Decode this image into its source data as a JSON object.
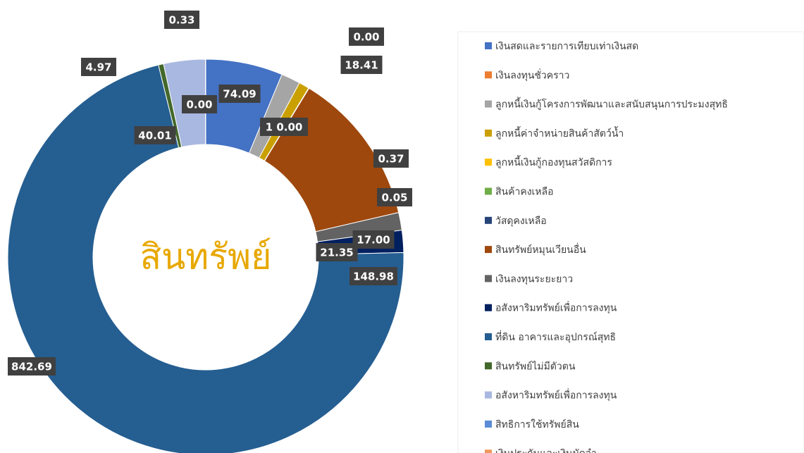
{
  "chart_data": {
    "type": "donut",
    "title": "สินทรัพย์",
    "categories": [
      "เงินสดและรายการเทียบเท่าเงินสด",
      "เงินลงทุนชั่วคราว",
      "ลูกหนี้เงินกู้โครงการพัฒนาและสนับสนุนการประมงสุทธิ",
      "ลูกหนี้ค่าจำหน่ายสินค้าสัตว์น้ำ",
      "ลูกหนี้เงินกู้กองทุนสวัสดิการ",
      "สินค้าคงเหลือ",
      "วัสดุคงเหลือ",
      "สินทรัพย์หมุนเวียนอื่น",
      "เงินลงทุนระยะยาว",
      "อสังหาริมทรัพย์เพื่อการลงทุน",
      "ที่ดิน อาคารและอุปกรณ์สุทธิ",
      "สินทรัพย์ไม่มีตัวตน",
      "อสังหาริมทรัพย์เพื่อการลงทุน",
      "สิทธิการใช้ทรัพย์สิน",
      "เงินประกันและเงินมัดจำ"
    ],
    "values": [
      74.09,
      0,
      18.41,
      10,
      0.37,
      0.05,
      0,
      148.98,
      17,
      21.35,
      842.69,
      4.97,
      40.01,
      0,
      0.33
    ],
    "value_labels": [
      "74.09",
      "0.00",
      "18.41",
      "1 0.00",
      "0.37",
      "0.05",
      null,
      "148.98",
      "17.00",
      "21.35",
      "842.69",
      "4.97",
      "40.01",
      "0.00",
      "0.33"
    ],
    "colors": [
      "#4472c4",
      "#ed7d31",
      "#a5a5a5",
      "#c9a000",
      "#ffc000",
      "#70ad47",
      "#264478",
      "#9e480e",
      "#636363",
      "#002060",
      "#255e91",
      "#43682b",
      "#a9b8e0",
      "#5b8bd6",
      "#f1975a"
    ],
    "legend": "right"
  }
}
